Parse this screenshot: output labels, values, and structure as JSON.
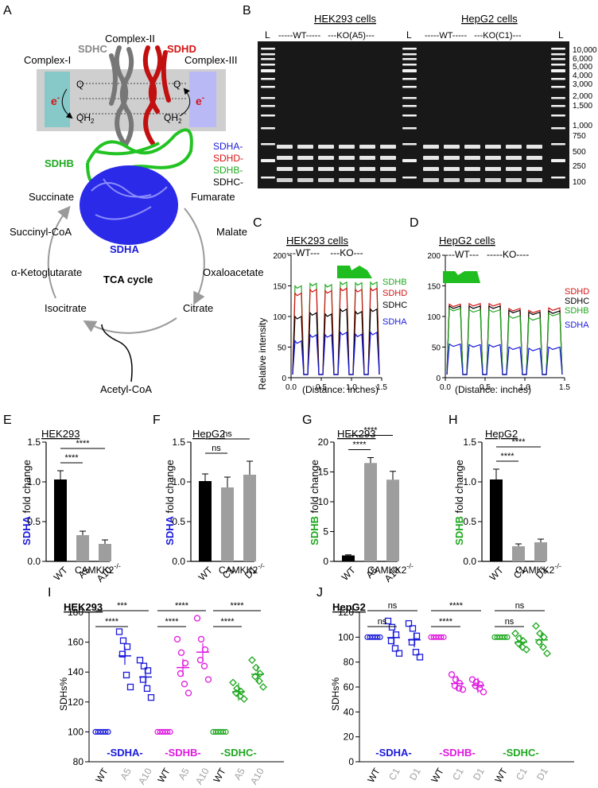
{
  "panels": {
    "A": "A",
    "B": "B",
    "C": "C",
    "D": "D",
    "E": "E",
    "F": "F",
    "G": "G",
    "H": "H",
    "I": "I",
    "J": "J"
  },
  "colors": {
    "blue": "#1a1adb",
    "red": "#d41313",
    "green": "#1fa81f",
    "gray": "#999999",
    "magenta": "#e018e0",
    "black": "#000000"
  },
  "panel_a": {
    "complex_i": "Complex-I",
    "complex_ii": "Complex-II",
    "complex_iii": "Complex-III",
    "sdhc": "SDHC",
    "sdhd": "SDHD",
    "sdhb": "SDHB",
    "sdha": "SDHA",
    "q": "Q",
    "qh2": "QH",
    "qh2_sub": "2",
    "e": "e",
    "e_sup": "-",
    "cycle_title": "TCA cycle",
    "metabolites": [
      "Succinate",
      "Fumarate",
      "Malate",
      "Oxaloacetate",
      "Citrate",
      "Isocitrate",
      "α-Ketoglutarate",
      "Succinyl-CoA",
      "Acetyl-CoA"
    ]
  },
  "panel_b": {
    "hek_title": "HEK293 cells",
    "hepg2_title": "HepG2 cells",
    "hek_groups": "-----WT-----   ---KO(A5)---",
    "hepg2_groups": "-----WT-----   ---KO(C1)---",
    "ladder": "L",
    "bp_labels": [
      "10,000",
      "6,000",
      "5,000",
      "4,000",
      "3,000",
      "2,000",
      "1,500",
      "1,000",
      "750",
      "500",
      "250",
      "100"
    ],
    "band_labels": [
      "SDHA-",
      "SDHD-",
      "SDHB-",
      "SDHC-"
    ]
  },
  "panel_c": {
    "title": "HEK293 cells",
    "groups": "---WT---    ---KO---",
    "ylabel": "Relative intensity",
    "xlabel": "(Distance: inches)",
    "legend": [
      "SDHB",
      "SDHD",
      "SDHC",
      "SDHA"
    ],
    "yticks": [
      "0",
      "50",
      "100",
      "150",
      "200"
    ],
    "xticks": [
      "0.0",
      "0.5",
      "1.0",
      "1.5"
    ]
  },
  "panel_d": {
    "title": "HepG2 cells",
    "groups": "---WT---   -----KO----",
    "xlabel": "(Distance: inches)",
    "legend": [
      "SDHD",
      "SDHC",
      "SDHB",
      "SDHA"
    ],
    "yticks": [
      "0",
      "50",
      "100",
      "150",
      "200"
    ],
    "xticks": [
      "0.0",
      "0.5",
      "1.0",
      "1.5"
    ]
  },
  "panel_e": {
    "cell": "HEK293",
    "ylabel_gene": "SDHA",
    "ylabel_rest": " fold change",
    "categories": [
      "WT",
      "A5",
      "A10"
    ],
    "genotype": "CAMKK2",
    "genotype_sup": "-/-",
    "yticks": [
      "0.0",
      "0.5",
      "1.0",
      "1.5"
    ],
    "sig": [
      "****",
      "****"
    ]
  },
  "panel_f": {
    "cell": "HepG2",
    "ylabel_gene": "SDHA",
    "ylabel_rest": " fold change",
    "categories": [
      "WT",
      "C1",
      "D1"
    ],
    "genotype": "CAMKK2",
    "genotype_sup": "-/-",
    "yticks": [
      "0.0",
      "0.5",
      "1.0",
      "1.5"
    ],
    "sig": [
      "ns",
      "ns"
    ]
  },
  "panel_g": {
    "cell": "HEK293",
    "ylabel_gene": "SDHB",
    "ylabel_rest": " fold change",
    "categories": [
      "WT",
      "A5",
      "A10"
    ],
    "genotype": "CAMKK2",
    "genotype_sup": "-/-",
    "yticks": [
      "0",
      "5",
      "10",
      "15",
      "20"
    ],
    "sig": [
      "****",
      "****"
    ]
  },
  "panel_h": {
    "cell": "HepG2",
    "ylabel_gene": "SDHB",
    "ylabel_rest": " fold change",
    "categories": [
      "WT",
      "C1",
      "D1"
    ],
    "genotype": "CAMKK2",
    "genotype_sup": "-/-",
    "yticks": [
      "0.0",
      "0.5",
      "1.0",
      "1.5"
    ],
    "sig": [
      "****",
      "****"
    ]
  },
  "panel_i": {
    "cell": "HEK293",
    "ylabel": "SDHs%",
    "yticks": [
      "80",
      "100",
      "120",
      "140",
      "160",
      "180"
    ],
    "groups": [
      "-SDHA-",
      "-SDHB-",
      "-SDHC-"
    ],
    "xlabels": [
      "WT",
      "A5",
      "A10",
      "WT",
      "A5",
      "A10",
      "WT",
      "A5",
      "A10"
    ],
    "sig": [
      "***",
      "****",
      "****",
      "****",
      "****",
      "****"
    ]
  },
  "panel_j": {
    "cell": "HepG2",
    "ylabel": "SDHs%",
    "yticks": [
      "0",
      "20",
      "40",
      "60",
      "80",
      "100",
      "120"
    ],
    "groups": [
      "-SDHA-",
      "-SDHB-",
      "-SDHC-"
    ],
    "xlabels": [
      "WT",
      "C1",
      "D1",
      "WT",
      "C1",
      "D1",
      "WT",
      "C1",
      "D1"
    ],
    "sig": [
      "ns",
      "ns",
      "****",
      "****",
      "ns",
      "ns"
    ]
  },
  "chart_data": [
    {
      "id": "E",
      "type": "bar",
      "title": "HEK293",
      "categories": [
        "WT",
        "A5",
        "A10"
      ],
      "values": [
        1.03,
        0.33,
        0.22
      ],
      "errors": [
        0.11,
        0.05,
        0.05
      ],
      "ylim": [
        0,
        1.5
      ],
      "ylabel": "SDHA fold change"
    },
    {
      "id": "F",
      "type": "bar",
      "title": "HepG2",
      "categories": [
        "WT",
        "C1",
        "D1"
      ],
      "values": [
        1.01,
        0.93,
        1.09
      ],
      "errors": [
        0.09,
        0.13,
        0.17
      ],
      "ylim": [
        0,
        1.5
      ],
      "ylabel": "SDHA fold change"
    },
    {
      "id": "G",
      "type": "bar",
      "title": "HEK293",
      "categories": [
        "WT",
        "A5",
        "A10"
      ],
      "values": [
        1.0,
        16.5,
        13.7
      ],
      "errors": [
        0.1,
        0.9,
        1.4
      ],
      "ylim": [
        0,
        20
      ],
      "ylabel": "SDHB fold change"
    },
    {
      "id": "H",
      "type": "bar",
      "title": "HepG2",
      "categories": [
        "WT",
        "C1",
        "D1"
      ],
      "values": [
        1.03,
        0.19,
        0.24
      ],
      "errors": [
        0.13,
        0.03,
        0.04
      ],
      "ylim": [
        0,
        1.5
      ],
      "ylabel": "SDHB fold change"
    },
    {
      "id": "I",
      "type": "scatter",
      "title": "HEK293",
      "ylim": [
        80,
        180
      ],
      "ylabel": "SDHs%",
      "series": [
        {
          "name": "SDHA WT",
          "values": [
            100,
            100,
            100,
            100,
            100,
            100
          ]
        },
        {
          "name": "SDHA A5",
          "values": [
            167,
            161,
            157,
            152,
            138,
            130
          ]
        },
        {
          "name": "SDHA A10",
          "values": [
            148,
            144,
            141,
            135,
            129,
            123
          ]
        },
        {
          "name": "SDHB WT",
          "values": [
            100,
            100,
            100,
            100,
            100,
            100
          ]
        },
        {
          "name": "SDHB A5",
          "values": [
            162,
            153,
            146,
            139,
            132,
            126
          ]
        },
        {
          "name": "SDHB A10",
          "values": [
            176,
            162,
            155,
            148,
            144,
            135
          ]
        },
        {
          "name": "SDHC WT",
          "values": [
            100,
            100,
            100,
            100,
            100,
            100
          ]
        },
        {
          "name": "SDHC A5",
          "values": [
            133,
            129,
            127,
            126,
            124,
            122
          ]
        },
        {
          "name": "SDHC A10",
          "values": [
            148,
            143,
            139,
            137,
            134,
            130
          ]
        }
      ]
    },
    {
      "id": "J",
      "type": "scatter",
      "title": "HepG2",
      "ylim": [
        0,
        120
      ],
      "ylabel": "SDHs%",
      "series": [
        {
          "name": "SDHA WT",
          "values": [
            100,
            100,
            100,
            100,
            100,
            100
          ]
        },
        {
          "name": "SDHA C1",
          "values": [
            113,
            108,
            102,
            97,
            91,
            87
          ]
        },
        {
          "name": "SDHA D1",
          "values": [
            111,
            107,
            101,
            96,
            88,
            84
          ]
        },
        {
          "name": "SDHB WT",
          "values": [
            100,
            100,
            100,
            100,
            100,
            100
          ]
        },
        {
          "name": "SDHB C1",
          "values": [
            70,
            66,
            63,
            61,
            59,
            58
          ]
        },
        {
          "name": "SDHB D1",
          "values": [
            66,
            64,
            62,
            61,
            59,
            56
          ]
        },
        {
          "name": "SDHC WT",
          "values": [
            100,
            100,
            100,
            100,
            100,
            100
          ]
        },
        {
          "name": "SDHC C1",
          "values": [
            103,
            99,
            97,
            95,
            92,
            90
          ]
        },
        {
          "name": "SDHC D1",
          "values": [
            109,
            103,
            100,
            96,
            92,
            87
          ]
        }
      ]
    },
    {
      "id": "C",
      "type": "line",
      "title": "HEK293 cells",
      "xlim": [
        0,
        1.5
      ],
      "ylim": [
        0,
        200
      ],
      "series": [
        {
          "name": "SDHB",
          "values": [
            150,
            154,
            152,
            156,
            155
          ]
        },
        {
          "name": "SDHD",
          "values": [
            138,
            144,
            142,
            146,
            144
          ]
        },
        {
          "name": "SDHC",
          "values": [
            100,
            106,
            104,
            112,
            108
          ]
        },
        {
          "name": "SDHA",
          "values": [
            60,
            70,
            70,
            74,
            71
          ]
        }
      ]
    },
    {
      "id": "D",
      "type": "line",
      "title": "HepG2 cells",
      "xlim": [
        0,
        1.5
      ],
      "ylim": [
        0,
        200
      ],
      "series": [
        {
          "name": "SDHD",
          "values": [
            120,
            121,
            113,
            110,
            114
          ]
        },
        {
          "name": "SDHC",
          "values": [
            117,
            117,
            110,
            107,
            109
          ]
        },
        {
          "name": "SDHB",
          "values": [
            113,
            111,
            101,
            98,
            105
          ]
        },
        {
          "name": "SDHA",
          "values": [
            55,
            54,
            50,
            48,
            50
          ]
        }
      ]
    }
  ]
}
